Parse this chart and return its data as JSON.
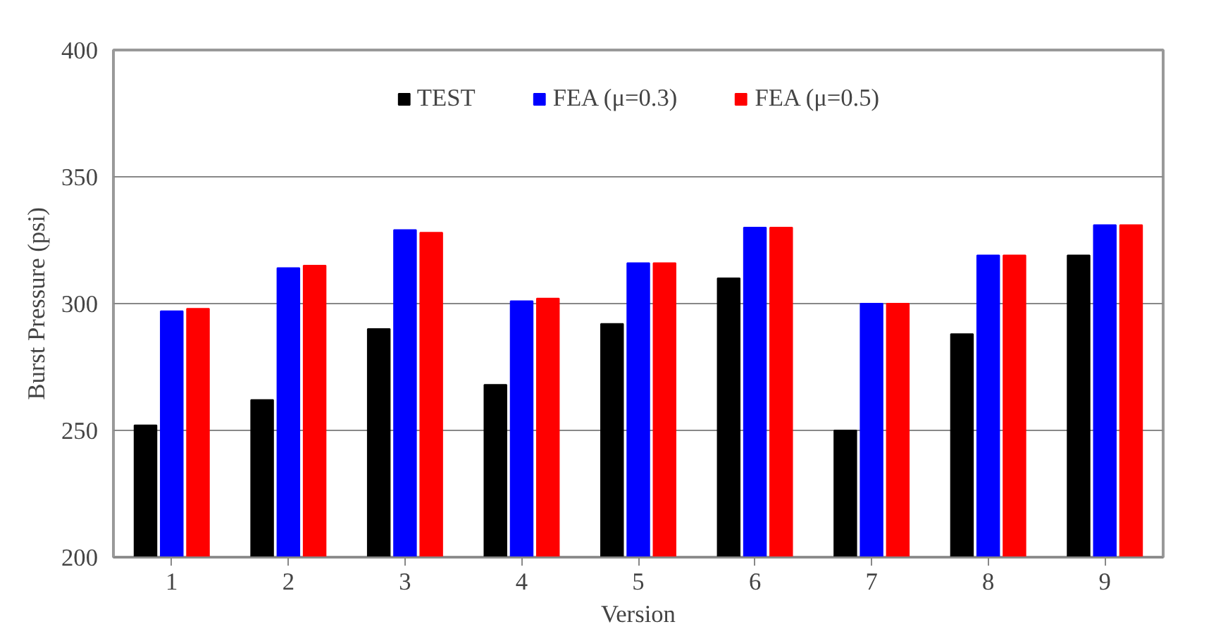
{
  "chart_data": {
    "type": "bar",
    "xlabel": "Version",
    "ylabel": "Burst Pressure (psi)",
    "categories": [
      "1",
      "2",
      "3",
      "4",
      "5",
      "6",
      "7",
      "8",
      "9"
    ],
    "series": [
      {
        "name": "TEST",
        "color": "#000000",
        "values": [
          252,
          262,
          290,
          268,
          292,
          310,
          250,
          288,
          319
        ]
      },
      {
        "name": "FEA (μ=0.3)",
        "color": "#0000ff",
        "values": [
          297,
          314,
          329,
          301,
          316,
          330,
          300,
          319,
          331
        ]
      },
      {
        "name": "FEA (μ=0.5)",
        "color": "#ff0000",
        "values": [
          298,
          315,
          328,
          302,
          316,
          330,
          300,
          319,
          331
        ]
      }
    ],
    "ylim": [
      200,
      400
    ],
    "yticks": [
      200,
      250,
      300,
      350,
      400
    ],
    "grid": "y",
    "legend": "top"
  }
}
